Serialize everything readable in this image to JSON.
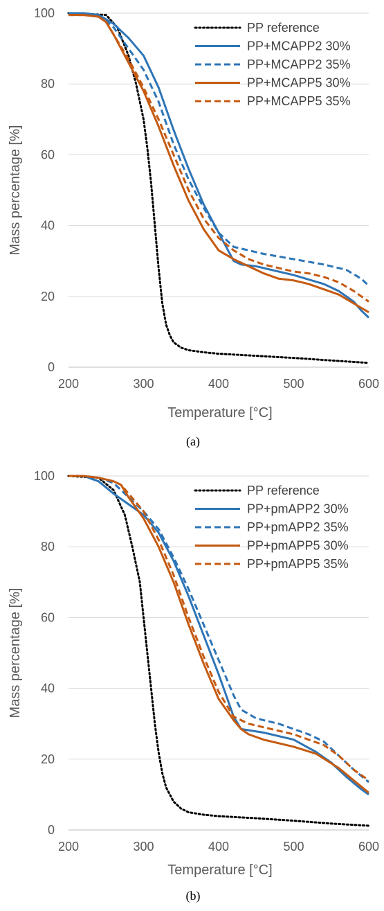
{
  "chart_data": [
    {
      "type": "line",
      "panel_label": "(a)",
      "title": "",
      "xlabel": "Temperature [°C]",
      "ylabel": "Mass percentage [%]",
      "xlim": [
        200,
        600
      ],
      "ylim": [
        0,
        100
      ],
      "xticks": [
        200,
        300,
        400,
        500,
        600
      ],
      "yticks": [
        0,
        20,
        40,
        60,
        80,
        100
      ],
      "grid": "horizontal",
      "legend": "top-right",
      "series": [
        {
          "name": "PP reference",
          "color": "#000000",
          "style": "dotted",
          "x": [
            200,
            250,
            265,
            280,
            290,
            300,
            305,
            310,
            315,
            320,
            325,
            330,
            335,
            340,
            350,
            360,
            380,
            400,
            450,
            500,
            550,
            600
          ],
          "y": [
            100,
            99.5,
            96,
            88,
            80,
            70,
            62,
            52,
            40,
            28,
            18,
            12,
            9,
            7,
            5.5,
            4.8,
            4.2,
            3.8,
            3.2,
            2.6,
            1.9,
            1.2
          ]
        },
        {
          "name": "PP+MCAPP2 30%",
          "color": "#2e75b6",
          "style": "solid",
          "x": [
            200,
            220,
            240,
            260,
            280,
            300,
            320,
            340,
            360,
            380,
            400,
            410,
            420,
            430,
            450,
            500,
            540,
            560,
            580,
            590,
            600
          ],
          "y": [
            100,
            100,
            99.5,
            97,
            93,
            88,
            79,
            67,
            56,
            46,
            38,
            34,
            30,
            29,
            28.5,
            26,
            23.5,
            21.5,
            18.5,
            16,
            14
          ]
        },
        {
          "name": "PP+MCAPP2 35%",
          "color": "#2e75b6",
          "style": "dashed",
          "x": [
            200,
            220,
            240,
            260,
            280,
            300,
            320,
            340,
            360,
            380,
            400,
            420,
            440,
            460,
            500,
            540,
            570,
            590,
            600
          ],
          "y": [
            100,
            100,
            99.5,
            96,
            90,
            84,
            75,
            63,
            53,
            45,
            38,
            34,
            33,
            32,
            30.5,
            29,
            27.5,
            25,
            23
          ]
        },
        {
          "name": "PP+MCAPP5 30%",
          "color": "#c55a11",
          "style": "solid",
          "x": [
            200,
            220,
            240,
            250,
            260,
            280,
            300,
            320,
            340,
            360,
            380,
            400,
            420,
            440,
            460,
            480,
            500,
            520,
            540,
            560,
            580,
            600
          ],
          "y": [
            99.5,
            99.5,
            99,
            97.5,
            94,
            86,
            78,
            68,
            57,
            47,
            39,
            33,
            30.5,
            28.5,
            26.5,
            25,
            24.5,
            23.5,
            22,
            20.5,
            18,
            15.5
          ]
        },
        {
          "name": "PP+MCAPP5 35%",
          "color": "#c55a11",
          "style": "dashed",
          "x": [
            200,
            220,
            240,
            250,
            260,
            280,
            300,
            320,
            340,
            360,
            380,
            400,
            420,
            440,
            460,
            480,
            500,
            520,
            540,
            560,
            580,
            600
          ],
          "y": [
            99.5,
            99.5,
            99,
            97.5,
            94,
            87,
            79,
            70,
            60,
            50,
            42,
            36.5,
            33,
            30.5,
            29,
            28,
            27,
            26.5,
            25.5,
            24,
            21.5,
            18.5
          ]
        }
      ]
    },
    {
      "type": "line",
      "panel_label": "(b)",
      "title": "",
      "xlabel": "Temperature [°C]",
      "ylabel": "Mass percentage [%]",
      "xlim": [
        200,
        600
      ],
      "ylim": [
        0,
        100
      ],
      "xticks": [
        200,
        300,
        400,
        500,
        600
      ],
      "yticks": [
        0,
        20,
        40,
        60,
        80,
        100
      ],
      "grid": "horizontal",
      "legend": "top-right",
      "series": [
        {
          "name": "PP reference",
          "color": "#000000",
          "style": "dotted",
          "x": [
            200,
            240,
            260,
            275,
            285,
            295,
            300,
            305,
            310,
            315,
            320,
            325,
            330,
            340,
            350,
            360,
            380,
            400,
            450,
            500,
            550,
            600
          ],
          "y": [
            100,
            99.5,
            96,
            89,
            80,
            70,
            60,
            50,
            40,
            30,
            22,
            16,
            12,
            8,
            6,
            5,
            4.3,
            3.9,
            3.3,
            2.6,
            1.8,
            1.2
          ]
        },
        {
          "name": "PP+pmAPP2 30%",
          "color": "#2e75b6",
          "style": "solid",
          "x": [
            200,
            220,
            240,
            260,
            280,
            300,
            320,
            340,
            360,
            380,
            400,
            410,
            420,
            430,
            460,
            500,
            530,
            550,
            570,
            590,
            600
          ],
          "y": [
            100,
            100,
            98.5,
            95,
            92,
            89,
            84,
            76,
            66,
            55,
            44,
            38,
            32,
            28.5,
            27.5,
            25.5,
            22,
            19,
            15,
            11.5,
            10
          ]
        },
        {
          "name": "PP+pmAPP2 35%",
          "color": "#2e75b6",
          "style": "dashed",
          "x": [
            200,
            220,
            240,
            260,
            280,
            300,
            320,
            340,
            360,
            380,
            400,
            420,
            430,
            450,
            480,
            500,
            520,
            540,
            560,
            580,
            600
          ],
          "y": [
            100,
            100,
            99.5,
            98,
            94,
            90,
            85,
            77,
            68,
            58,
            48,
            38,
            34,
            31.5,
            30,
            28.5,
            27,
            25,
            21,
            17,
            13.5
          ]
        },
        {
          "name": "PP+pmAPP5 30%",
          "color": "#c55a11",
          "style": "solid",
          "x": [
            200,
            220,
            240,
            260,
            270,
            280,
            300,
            320,
            340,
            360,
            380,
            400,
            420,
            430,
            440,
            460,
            500,
            530,
            560,
            580,
            600
          ],
          "y": [
            100,
            100,
            99.5,
            98.5,
            97.5,
            94,
            88,
            80,
            70,
            58,
            47,
            37,
            31,
            28.5,
            27,
            25.5,
            23.5,
            21.5,
            17.5,
            14,
            10.5
          ]
        },
        {
          "name": "PP+pmAPP5 35%",
          "color": "#c55a11",
          "style": "dashed",
          "x": [
            200,
            220,
            240,
            260,
            270,
            280,
            300,
            320,
            340,
            360,
            380,
            400,
            420,
            440,
            460,
            500,
            540,
            560,
            580,
            600
          ],
          "y": [
            100,
            100,
            99.5,
            98.5,
            97.5,
            95,
            90,
            82,
            72,
            60,
            49,
            39,
            32,
            30,
            29,
            27,
            24,
            21,
            17,
            14
          ]
        }
      ]
    }
  ]
}
